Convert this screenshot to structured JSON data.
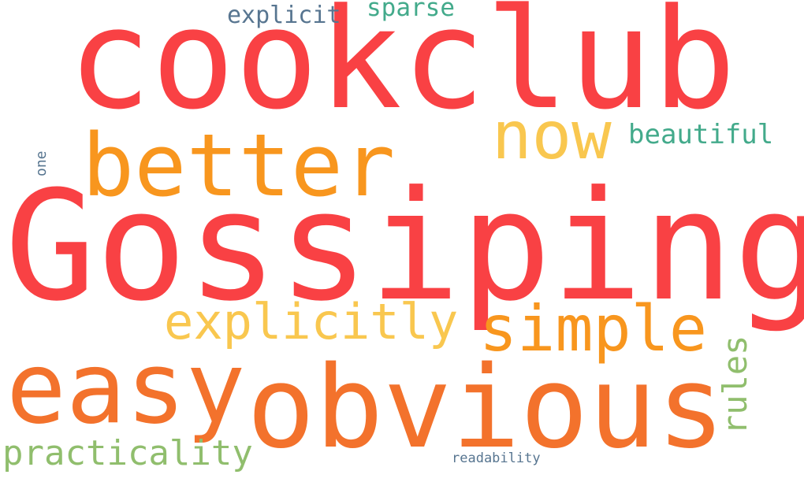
{
  "words": [
    {
      "id": "cookclub",
      "text": "cookclub",
      "color": "#f94144"
    },
    {
      "id": "gossiping",
      "text": "Gossiping",
      "color": "#f94144"
    },
    {
      "id": "better",
      "text": "better",
      "color": "#f8961e"
    },
    {
      "id": "now",
      "text": "now",
      "color": "#f9c74f"
    },
    {
      "id": "explicit",
      "text": "explicit",
      "color": "#577590"
    },
    {
      "id": "sparse",
      "text": "sparse",
      "color": "#43aa8b"
    },
    {
      "id": "beautiful",
      "text": "beautiful",
      "color": "#43aa8b"
    },
    {
      "id": "one",
      "text": "one",
      "color": "#577590"
    },
    {
      "id": "explicitly",
      "text": "explicitly",
      "color": "#f9c74f"
    },
    {
      "id": "simple",
      "text": "simple",
      "color": "#f8961e"
    },
    {
      "id": "easy",
      "text": "easy",
      "color": "#f3722c"
    },
    {
      "id": "obvious",
      "text": "obvious",
      "color": "#f3722c"
    },
    {
      "id": "rules",
      "text": "rules",
      "color": "#90be6d"
    },
    {
      "id": "practicality",
      "text": "practicality",
      "color": "#90be6d"
    },
    {
      "id": "readability",
      "text": "readability",
      "color": "#577590"
    }
  ]
}
